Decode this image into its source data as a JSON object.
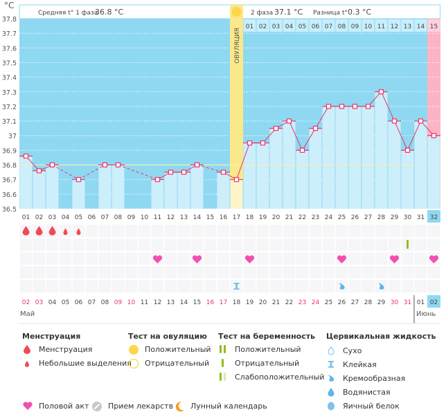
{
  "header": {
    "phase1_label": "Средняя t° 1 фаза",
    "phase1_value": "36.8 °C",
    "phase2_label": "2 фаза",
    "phase2_value": "37.1 °C",
    "diff_label": "Разница t°",
    "diff_value": "0.3 °C",
    "unit": "°C",
    "ovulation_label": "ОВУЛЯЦИЯ"
  },
  "colors": {
    "sky": "#8fd8f2",
    "bar": "#cdeefb",
    "line": "#e8336a",
    "ovulation": "#fbe88a",
    "ovulation_low": "#fdf4c8",
    "pink_day": "#fbb4c6",
    "cover_line": "#f6f2a8",
    "weekend": "#e8336a"
  },
  "chart_data": {
    "type": "line",
    "title": "",
    "ylabel": "°C",
    "ylim": [
      36.5,
      37.8
    ],
    "yticks": [
      "37.8",
      "37.7",
      "37.6",
      "37.5",
      "37.4",
      "37.3",
      "37.2",
      "37.1",
      "37",
      "36.9",
      "36.8",
      "36.7",
      "36.6",
      "36.5"
    ],
    "cycle_days": [
      "01",
      "02",
      "03",
      "04",
      "05",
      "06",
      "07",
      "08",
      "09",
      "10",
      "11",
      "12",
      "13",
      "14",
      "15",
      "16",
      "17",
      "18",
      "19",
      "20",
      "21",
      "22",
      "23",
      "24",
      "25",
      "26",
      "27",
      "28",
      "29",
      "30",
      "31",
      "32"
    ],
    "temperatures": [
      36.86,
      36.76,
      36.8,
      null,
      36.7,
      null,
      36.8,
      36.8,
      null,
      null,
      36.7,
      36.75,
      36.75,
      36.8,
      null,
      36.75,
      36.7,
      36.95,
      36.95,
      37.05,
      37.1,
      36.9,
      37.05,
      37.2,
      37.2,
      37.2,
      37.2,
      37.3,
      37.1,
      36.9,
      37.1,
      37.0
    ],
    "coverline": 36.8,
    "ovulation_day": 17,
    "phase2_day_labels": [
      "01",
      "02",
      "03",
      "04",
      "05",
      "06",
      "07",
      "08",
      "09",
      "10",
      "11",
      "12",
      "13",
      "14",
      "15"
    ],
    "dates": [
      "02",
      "03",
      "04",
      "05",
      "06",
      "07",
      "08",
      "09",
      "10",
      "11",
      "12",
      "13",
      "14",
      "15",
      "16",
      "17",
      "18",
      "19",
      "20",
      "21",
      "22",
      "23",
      "24",
      "25",
      "26",
      "27",
      "28",
      "29",
      "30",
      "31",
      "01",
      "02"
    ],
    "weekend_dates_idx": [
      0,
      1,
      7,
      8,
      14,
      15,
      21,
      22,
      28,
      29
    ],
    "months": [
      {
        "label": "Май",
        "start_idx": 0
      },
      {
        "label": "Июнь",
        "start_idx": 30
      }
    ],
    "today_idx": 31
  },
  "symbols": {
    "menstruation": [
      {
        "day": 1,
        "size": "big"
      },
      {
        "day": 2,
        "size": "big"
      },
      {
        "day": 3,
        "size": "big"
      },
      {
        "day": 4,
        "size": "small"
      },
      {
        "day": 5,
        "size": "small"
      }
    ],
    "pregnancy_test": [
      {
        "day": 30,
        "kind": "negative"
      }
    ],
    "intercourse": [
      11,
      14,
      18,
      25,
      29,
      32
    ],
    "fluid": [
      {
        "day": 17,
        "kind": "sticky"
      },
      {
        "day": 25,
        "kind": "creamy"
      },
      {
        "day": 28,
        "kind": "creamy"
      }
    ]
  },
  "legend": {
    "menstruation": {
      "title": "Менструация",
      "items": [
        "Менструация",
        "Небольшие выделения"
      ]
    },
    "ovulation_test": {
      "title": "Тест на овуляцию",
      "items": [
        "Положительный",
        "Отрицательный"
      ]
    },
    "pregnancy_test": {
      "title": "Тест на беременность",
      "items": [
        "Положительный",
        "Отрицательный",
        "Слабоположительный"
      ]
    },
    "cervical": {
      "title": "Цервикальная жидкость",
      "items": [
        "Сухо",
        "Клейкая",
        "Кремообразная",
        "Водянистая",
        "Яичный белок"
      ]
    },
    "other": [
      "Половой акт",
      "Прием лекарств",
      "Лунный календарь"
    ]
  }
}
